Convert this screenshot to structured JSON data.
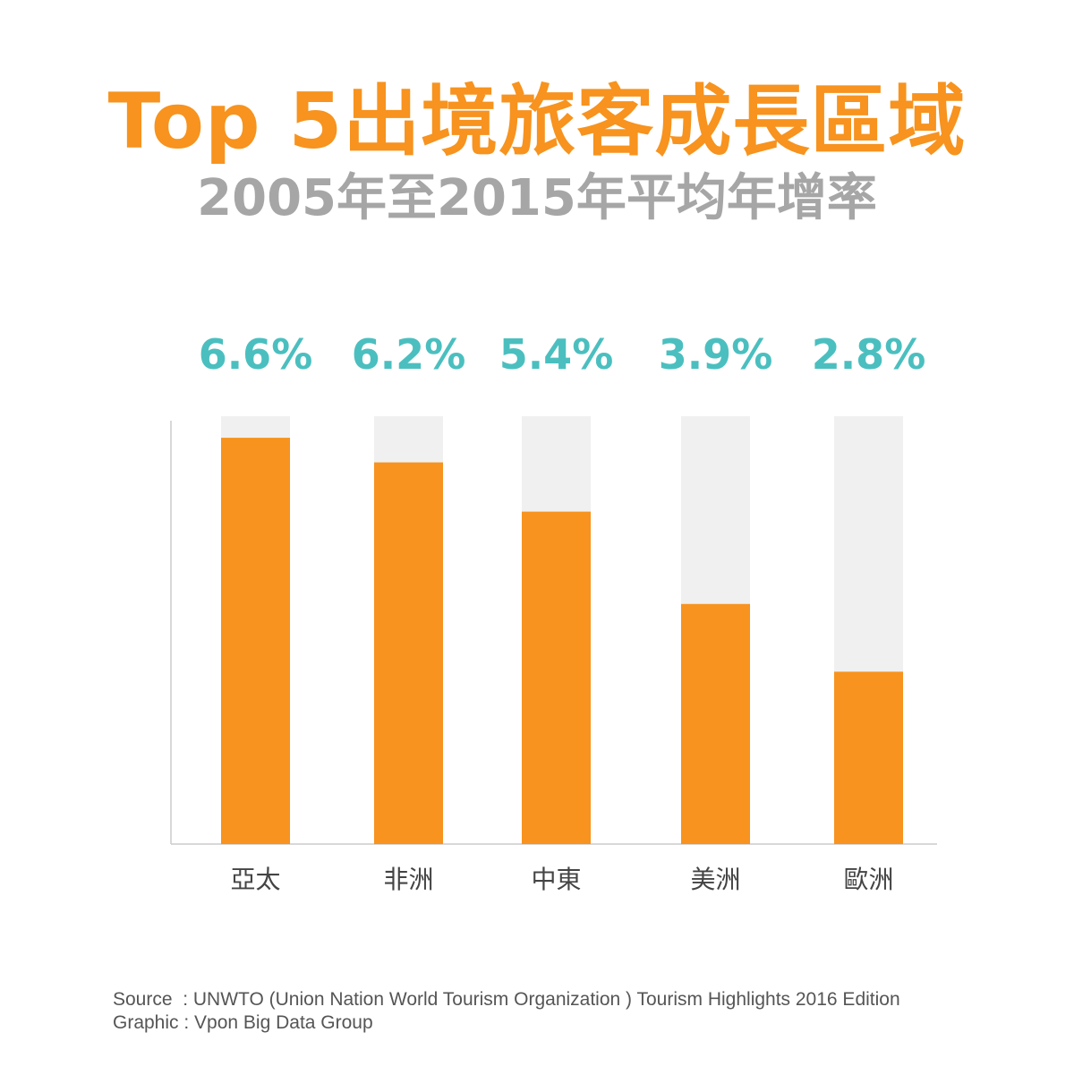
{
  "title": "Top 5出境旅客成長區域",
  "subtitle": "2005年至2015年平均年增率",
  "chart_data": {
    "type": "bar",
    "title": "Top 5出境旅客成長區域",
    "subtitle": "2005年至2015年平均年增率",
    "categories": [
      "亞太",
      "非洲",
      "中東",
      "美洲",
      "歐洲"
    ],
    "values": [
      6.6,
      6.2,
      5.4,
      3.9,
      2.8
    ],
    "value_labels": [
      "6.6%",
      "6.2%",
      "5.4%",
      "3.9%",
      "2.8%"
    ],
    "unit": "%",
    "ylim": [
      0,
      6.95
    ],
    "xlabel": "",
    "ylabel": "",
    "grid": false,
    "legend": "none"
  },
  "footer": {
    "source_line": "Source  : UNWTO (Union Nation World Tourism Organization ) Tourism Highlights 2016 Edition",
    "graphic_line": "Graphic : Vpon Big Data Group"
  },
  "colors": {
    "bar": "#f7931e",
    "track": "#f0f0f0",
    "value_label": "#4bbfbf",
    "title": "#f7931e",
    "subtitle": "#a6a6a6",
    "axis": "#cccccc",
    "category_label": "#444444"
  }
}
